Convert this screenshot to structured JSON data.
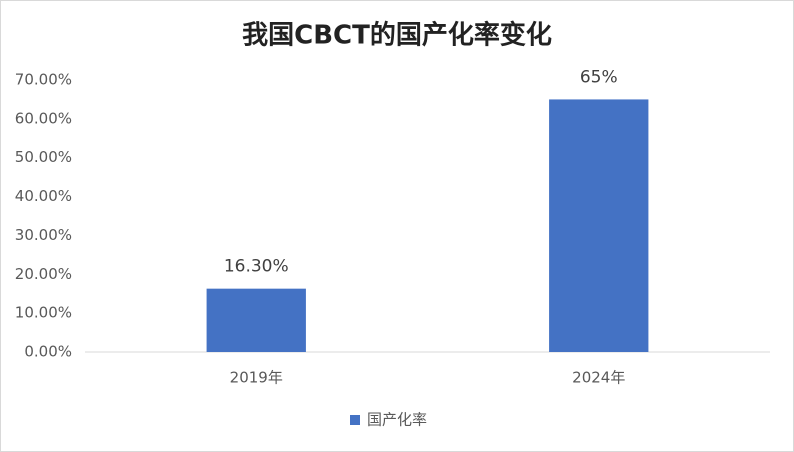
{
  "chart_data": {
    "type": "bar",
    "title": "我国CBCT的国产化率变化",
    "categories": [
      "2019年",
      "2024年"
    ],
    "series": [
      {
        "name": "国产化率",
        "color": "#4472c4",
        "values": [
          16.3,
          65
        ],
        "value_labels": [
          "16.30%",
          "65%"
        ]
      }
    ],
    "ylim": [
      0,
      70
    ],
    "yticks": [
      {
        "value": 0,
        "label": "0.00%"
      },
      {
        "value": 10,
        "label": "10.00%"
      },
      {
        "value": 20,
        "label": "20.00%"
      },
      {
        "value": 30,
        "label": "30.00%"
      },
      {
        "value": 40,
        "label": "40.00%"
      },
      {
        "value": 50,
        "label": "50.00%"
      },
      {
        "value": 60,
        "label": "60.00%"
      },
      {
        "value": 70,
        "label": "70.00%"
      }
    ],
    "grid": false,
    "legend": "bottom"
  }
}
